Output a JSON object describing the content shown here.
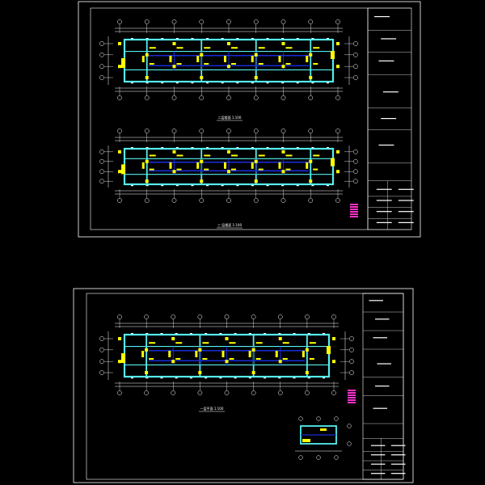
{
  "colors": {
    "background": "#000000",
    "frame": "#ffffff",
    "wall": "#55eeee",
    "beam": "#1a2bd6",
    "dimension": "#ffffff",
    "annotation": "#ffff00",
    "column": "#ffff00",
    "stamp": "#ff33cc"
  },
  "sheets": [
    {
      "name": "sheet-1",
      "plans": [
        {
          "name": "plan-upper",
          "title": "二层楼面 1:100"
        },
        {
          "name": "plan-lower",
          "title": "三 层楼面 1:100"
        }
      ]
    },
    {
      "name": "sheet-2",
      "plans": [
        {
          "name": "plan-main",
          "title": "一层平面 1:100"
        }
      ]
    }
  ]
}
